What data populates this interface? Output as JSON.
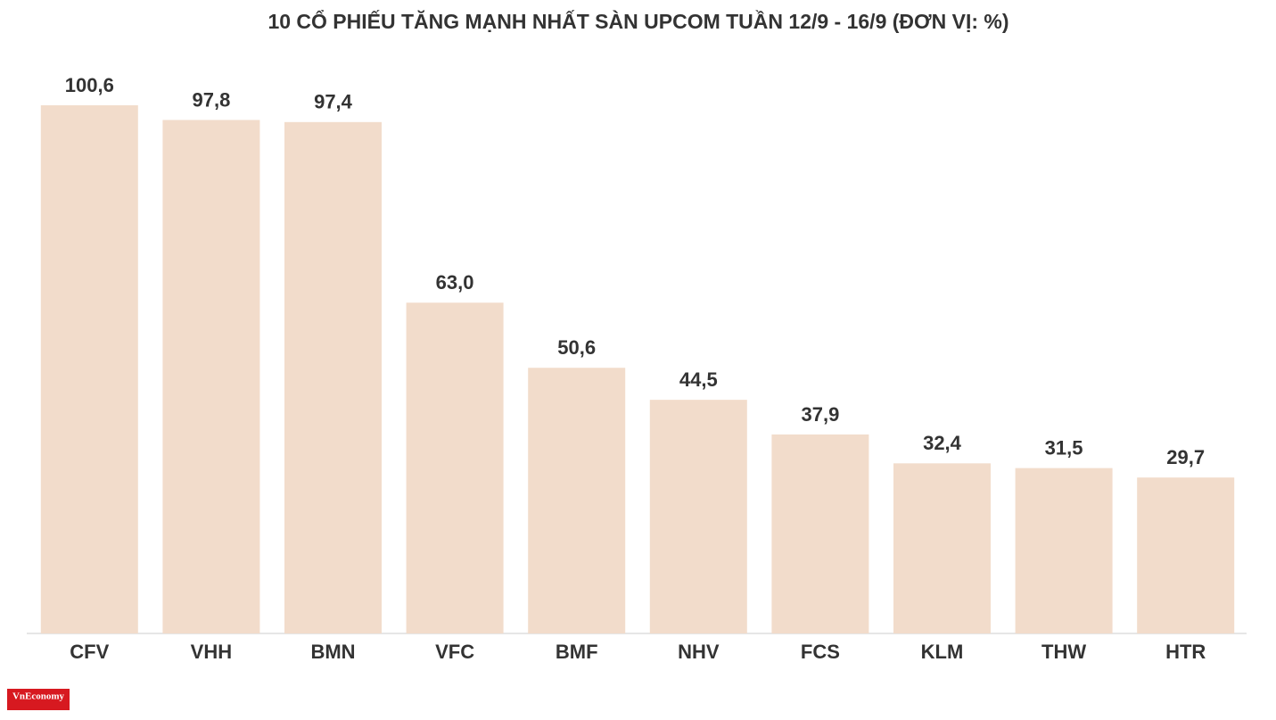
{
  "chart_data": {
    "type": "bar",
    "title": "10 CỔ PHIẾU TĂNG MẠNH NHẤT SÀN UPCOM TUẦN 12/9 - 16/9 (ĐƠN VỊ: %)",
    "categories": [
      "CFV",
      "VHH",
      "BMN",
      "VFC",
      "BMF",
      "NHV",
      "FCS",
      "KLM",
      "THW",
      "HTR"
    ],
    "values": [
      100.6,
      97.8,
      97.4,
      63.0,
      50.6,
      44.5,
      37.9,
      32.4,
      31.5,
      29.7
    ],
    "value_labels": [
      "100,6",
      "97,8",
      "97,4",
      "63,0",
      "50,6",
      "44,5",
      "37,9",
      "32,4",
      "31,5",
      "29,7"
    ],
    "color": "#f2dccb"
  },
  "logo": "VnEconomy"
}
